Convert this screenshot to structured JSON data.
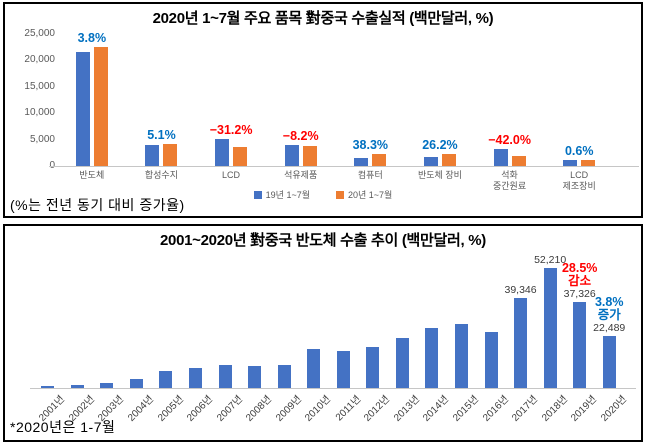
{
  "accent_colors": {
    "bar_blue": "#4472C4",
    "bar_orange": "#ED7D31",
    "increase_blue": "#0070C0",
    "decrease_red": "#FF0000"
  },
  "panel1_note": "(%는 전년 동기 대비 증가율)",
  "panel2_note": "*2020년은 1-7월",
  "chart_data": [
    {
      "type": "bar",
      "title": "2020년 1~7월 주요 품목 對중국 수출실적 (백만달러, %)",
      "categories": [
        "반도체",
        "합성수지",
        "LCD",
        "석유제품",
        "컴퓨터",
        "반도체 장비",
        "석화\n중간원료",
        "LCD\n제조장비"
      ],
      "series": [
        {
          "name": "19년 1~7월",
          "color": "#4472C4",
          "values": [
            21660,
            3900,
            5200,
            4050,
            1600,
            1750,
            3300,
            1080
          ]
        },
        {
          "name": "20년 1~7월",
          "color": "#ED7D31",
          "values": [
            22489,
            4100,
            3580,
            3720,
            2213,
            2209,
            1914,
            1086
          ]
        }
      ],
      "pct_labels": [
        {
          "text": "3.8%",
          "color": "#0070C0"
        },
        {
          "text": "5.1%",
          "color": "#0070C0"
        },
        {
          "text": "−31.2%",
          "color": "#FF0000"
        },
        {
          "text": "−8.2%",
          "color": "#FF0000"
        },
        {
          "text": "38.3%",
          "color": "#0070C0"
        },
        {
          "text": "26.2%",
          "color": "#0070C0"
        },
        {
          "text": "−42.0%",
          "color": "#FF0000"
        },
        {
          "text": "0.6%",
          "color": "#0070C0"
        }
      ],
      "ylim": [
        0,
        25000
      ],
      "yticks": [
        {
          "value": 0,
          "label": "0"
        },
        {
          "value": 5000,
          "label": "5,000"
        },
        {
          "value": 10000,
          "label": "10,000"
        },
        {
          "value": 15000,
          "label": "15,000"
        },
        {
          "value": 20000,
          "label": "20,000"
        },
        {
          "value": 25000,
          "label": "25,000"
        }
      ],
      "grid": false,
      "legend_position": "bottom",
      "note": "(%는 전년 동기 대비 증가율)"
    },
    {
      "type": "bar",
      "title": "2001~2020년 對중국 반도체 수출 추이 (백만달러, %)",
      "categories": [
        "2001년",
        "2002년",
        "2003년",
        "2004년",
        "2005년",
        "2006년",
        "2007년",
        "2008년",
        "2009년",
        "2010년",
        "2011년",
        "2012년",
        "2013년",
        "2014년",
        "2015년",
        "2016년",
        "2017년",
        "2018년",
        "2019년",
        "2020년"
      ],
      "values": [
        700,
        1400,
        2200,
        4000,
        7600,
        8600,
        9800,
        9400,
        9800,
        17000,
        16000,
        17700,
        21600,
        26000,
        28000,
        24500,
        39346,
        52210,
        37326,
        22489
      ],
      "bar_color": "#4472C4",
      "ylim": [
        0,
        56000
      ],
      "grid": false,
      "legend_position": "none",
      "annotations": [
        {
          "category": "2017년",
          "lines": [
            {
              "text": "39,346",
              "color": "#3a3a3a",
              "bold": false
            }
          ]
        },
        {
          "category": "2018년",
          "lines": [
            {
              "text": "52,210",
              "color": "#3a3a3a",
              "bold": false
            }
          ]
        },
        {
          "category": "2019년",
          "lines": [
            {
              "text": "28.5%",
              "color": "#FF0000",
              "bold": true
            },
            {
              "text": "감소",
              "color": "#FF0000",
              "bold": true
            },
            {
              "text": "37,326",
              "color": "#3a3a3a",
              "bold": false
            }
          ]
        },
        {
          "category": "2020년",
          "lines": [
            {
              "text": "3.8%",
              "color": "#0070C0",
              "bold": true
            },
            {
              "text": "증가",
              "color": "#0070C0",
              "bold": true
            },
            {
              "text": "22,489",
              "color": "#3a3a3a",
              "bold": false
            }
          ]
        }
      ],
      "note": "*2020년은 1-7월"
    }
  ]
}
